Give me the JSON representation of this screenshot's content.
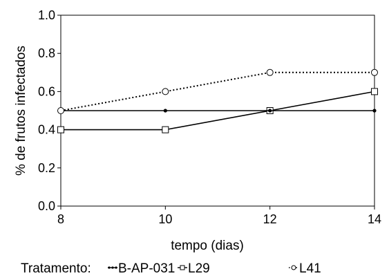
{
  "chart_data": {
    "type": "line",
    "xlabel": "tempo (dias)",
    "ylabel": "% de frutos infectados",
    "x": [
      8,
      10,
      12,
      14
    ],
    "xlim": [
      8,
      14
    ],
    "ylim": [
      0.0,
      1.0
    ],
    "x_ticks": [
      "8",
      "10",
      "12",
      "14"
    ],
    "y_ticks": [
      "0.0",
      "0.2",
      "0.4",
      "0.6",
      "0.8",
      "1.0"
    ],
    "grid": false,
    "legend_title": "Tratamento:",
    "legend_position": "bottom",
    "series": [
      {
        "name": "B-AP-031",
        "values": [
          0.5,
          0.5,
          0.5,
          0.5
        ],
        "marker": "dot",
        "line": "solid",
        "color": "#000000"
      },
      {
        "name": "L29",
        "values": [
          0.4,
          0.4,
          0.5,
          0.6
        ],
        "marker": "square",
        "line": "solid",
        "color": "#000000"
      },
      {
        "name": "L41",
        "values": [
          0.5,
          0.6,
          0.7,
          0.7
        ],
        "marker": "circle",
        "line": "dotted",
        "color": "#000000"
      }
    ]
  }
}
